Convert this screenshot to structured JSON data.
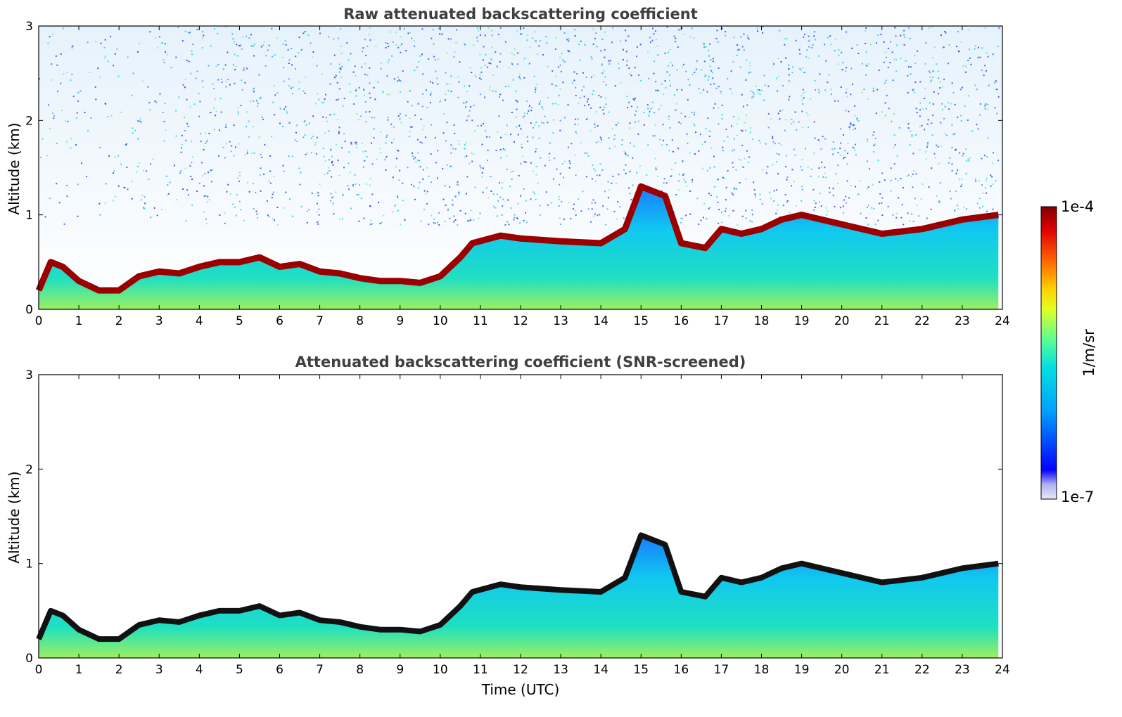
{
  "chart_data": [
    {
      "type": "heatmap",
      "title": "Raw attenuated backscattering coefficient",
      "xlabel": "",
      "ylabel": "Altitude (km)",
      "xlim": [
        0,
        24
      ],
      "ylim": [
        0,
        3
      ],
      "x_ticks": [
        "0",
        "1",
        "2",
        "3",
        "4",
        "5",
        "6",
        "7",
        "8",
        "9",
        "10",
        "11",
        "12",
        "13",
        "14",
        "15",
        "16",
        "17",
        "18",
        "19",
        "20",
        "21",
        "22",
        "23",
        "24"
      ],
      "y_ticks": [
        "0",
        "1",
        "2",
        "3"
      ],
      "layer_top_km": {
        "x": [
          0,
          0.3,
          0.6,
          1.0,
          1.5,
          2.0,
          2.5,
          3.0,
          3.5,
          4.0,
          4.5,
          5.0,
          5.5,
          6.0,
          6.5,
          7.0,
          7.5,
          8.0,
          8.5,
          9.0,
          9.5,
          10.0,
          10.5,
          10.8,
          11.5,
          12.0,
          13.0,
          14.0,
          14.6,
          15.0,
          15.6,
          16.0,
          16.6,
          17.0,
          17.5,
          18.0,
          18.5,
          19.0,
          20.0,
          21.0,
          22.0,
          23.0,
          23.9
        ],
        "y": [
          0.2,
          0.5,
          0.45,
          0.3,
          0.2,
          0.2,
          0.35,
          0.4,
          0.38,
          0.45,
          0.5,
          0.5,
          0.55,
          0.45,
          0.48,
          0.4,
          0.38,
          0.33,
          0.3,
          0.3,
          0.28,
          0.35,
          0.55,
          0.7,
          0.78,
          0.75,
          0.72,
          0.7,
          0.85,
          1.3,
          1.2,
          0.7,
          0.65,
          0.85,
          0.8,
          0.85,
          0.95,
          1.0,
          0.9,
          0.8,
          0.85,
          0.95,
          1.0
        ]
      }
    },
    {
      "type": "heatmap",
      "title": "Attenuated backscattering coefficient (SNR-screened)",
      "xlabel": "Time (UTC)",
      "ylabel": "Altitude (km)",
      "xlim": [
        0,
        24
      ],
      "ylim": [
        0,
        3
      ],
      "x_ticks": [
        "0",
        "1",
        "2",
        "3",
        "4",
        "5",
        "6",
        "7",
        "8",
        "9",
        "10",
        "11",
        "12",
        "13",
        "14",
        "15",
        "16",
        "17",
        "18",
        "19",
        "20",
        "21",
        "22",
        "23",
        "24"
      ],
      "y_ticks": [
        "0",
        "1",
        "2",
        "3"
      ]
    }
  ],
  "colorbar": {
    "label": "1/m/sr",
    "max_label": "1e-4",
    "min_label": "1e-7",
    "scale": "log",
    "colormap": "jet",
    "colors": [
      "#e8e8f8",
      "#0000ff",
      "#00a0ff",
      "#00e0e0",
      "#60ff90",
      "#e0ff20",
      "#ffd000",
      "#ff6000",
      "#e00000",
      "#800000"
    ]
  }
}
